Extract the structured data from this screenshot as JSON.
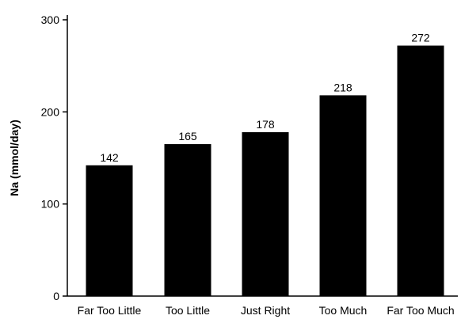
{
  "chart_data": {
    "type": "bar",
    "title": "",
    "xlabel": "",
    "ylabel": "Na (mmol/day)",
    "categories": [
      "Far Too Little",
      "Too Little",
      "Just Right",
      "Too Much",
      "Far Too Much"
    ],
    "values": [
      142,
      165,
      178,
      218,
      272
    ],
    "value_labels": [
      "142",
      "165",
      "178",
      "218",
      "272"
    ],
    "ylim": [
      0,
      300
    ],
    "yticks": [
      0,
      100,
      200,
      300
    ],
    "ytick_labels": [
      "0",
      "100",
      "200",
      "300"
    ],
    "grid": false,
    "legend": "none",
    "bar_color": "#000000"
  }
}
